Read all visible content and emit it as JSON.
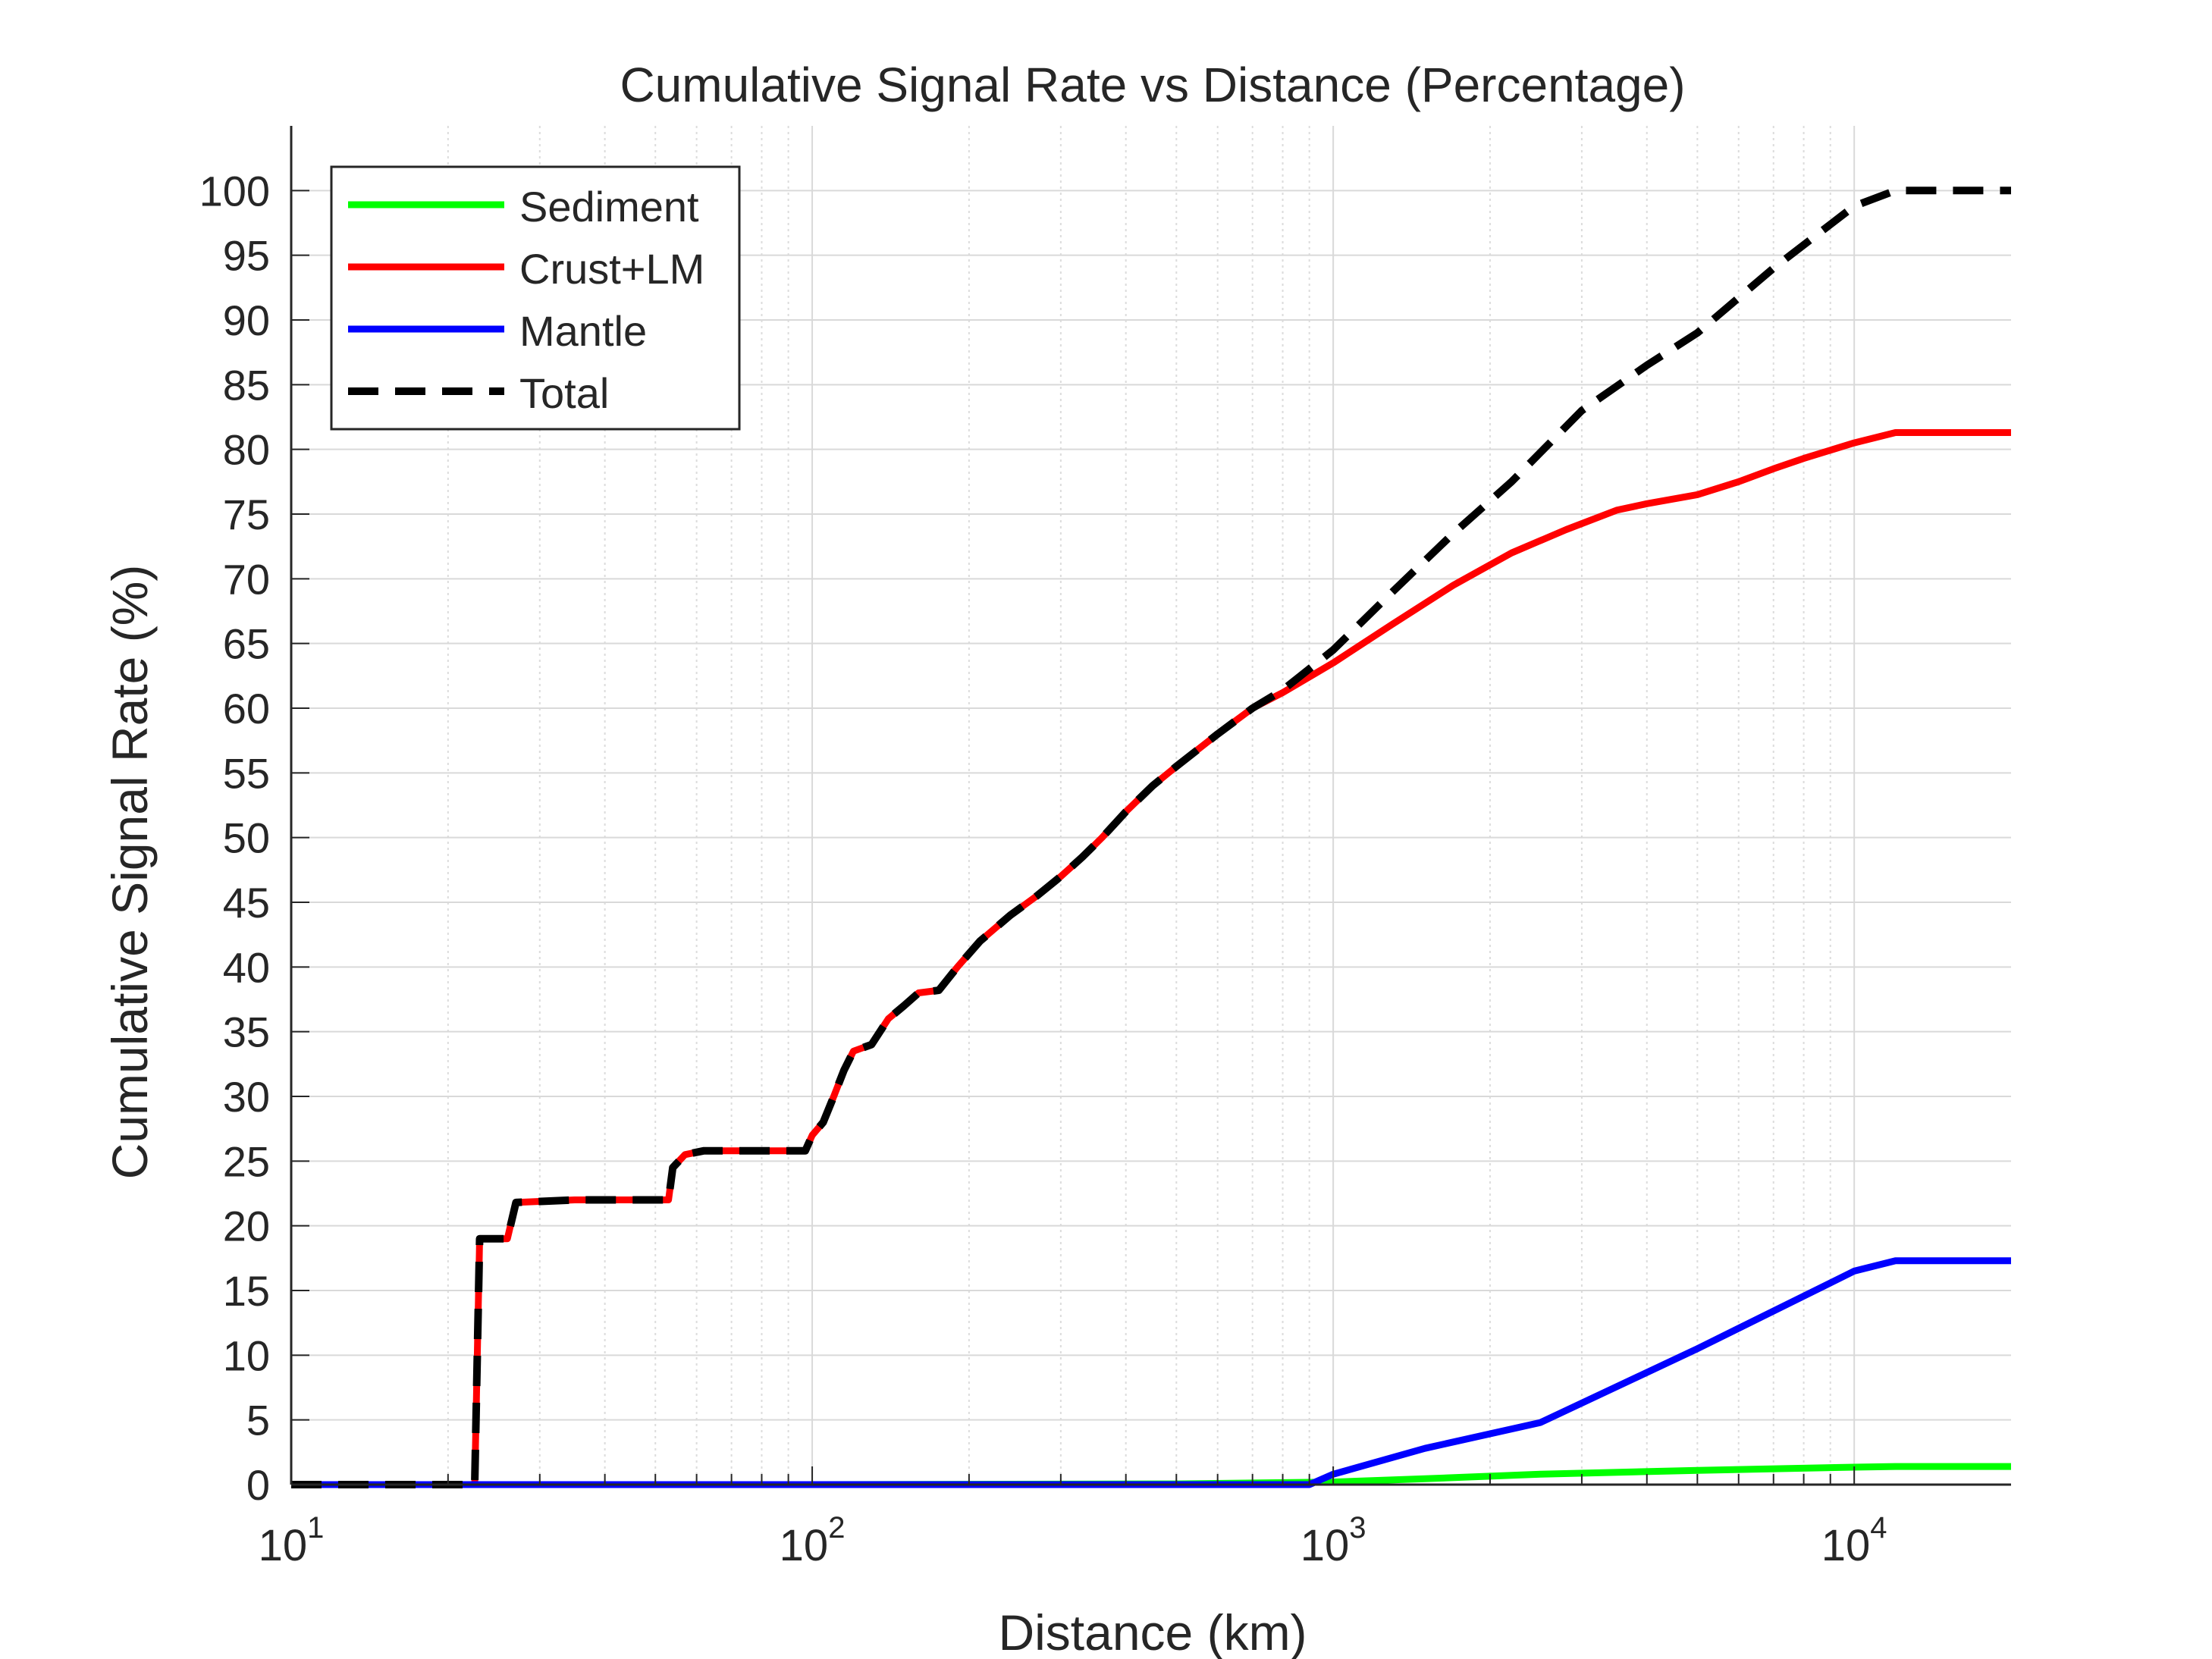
{
  "chart_data": {
    "type": "line",
    "title": "Cumulative Signal Rate vs Distance (Percentage)",
    "xlabel": "Distance (km)",
    "ylabel": "Cumulative Signal Rate (%)",
    "xscale": "log",
    "xlim": [
      10,
      20000
    ],
    "ylim": [
      0,
      105
    ],
    "x_ticks": [
      {
        "value": 10,
        "base": "10",
        "exp": "1"
      },
      {
        "value": 100,
        "base": "10",
        "exp": "2"
      },
      {
        "value": 1000,
        "base": "10",
        "exp": "3"
      },
      {
        "value": 10000,
        "base": "10",
        "exp": "4"
      }
    ],
    "y_ticks": [
      0,
      5,
      10,
      15,
      20,
      25,
      30,
      35,
      40,
      45,
      50,
      55,
      60,
      65,
      70,
      75,
      80,
      85,
      90,
      95,
      100
    ],
    "grid": true,
    "legend_position": "top-left",
    "series": [
      {
        "name": "Sediment",
        "color": "#00ff00",
        "style": "solid",
        "x": [
          10,
          100,
          500,
          1000,
          1500,
          2500,
          5000,
          10000,
          12000,
          20000
        ],
        "y": [
          0,
          0,
          0.05,
          0.2,
          0.45,
          0.8,
          1.1,
          1.35,
          1.4,
          1.4
        ]
      },
      {
        "name": "Crust+LM",
        "color": "#ff0000",
        "style": "solid",
        "x": [
          10,
          22.5,
          23,
          26,
          27,
          35,
          53,
          54,
          57,
          62,
          70,
          97,
          100,
          105,
          110,
          115,
          120,
          130,
          140,
          150,
          160,
          175,
          190,
          210,
          240,
          270,
          300,
          330,
          360,
          400,
          450,
          500,
          600,
          700,
          800,
          1000,
          1300,
          1700,
          2200,
          2800,
          3500,
          4000,
          5000,
          6000,
          7000,
          8000,
          10000,
          12000,
          20000
        ],
        "y": [
          0,
          0,
          19,
          19,
          21.8,
          22,
          22,
          24.5,
          25.5,
          25.8,
          25.8,
          25.8,
          27,
          28,
          30,
          32,
          33.5,
          34,
          36,
          37,
          38,
          38.2,
          40,
          42,
          44,
          45.5,
          47,
          48.5,
          50,
          52,
          54,
          55.5,
          58,
          60,
          61.2,
          63.5,
          66.5,
          69.5,
          72,
          73.8,
          75.3,
          75.8,
          76.5,
          77.5,
          78.5,
          79.3,
          80.5,
          81.3,
          81.3
        ]
      },
      {
        "name": "Mantle",
        "color": "#0000ff",
        "style": "solid",
        "x": [
          10,
          900,
          1000,
          1500,
          2500,
          5000,
          10000,
          12000,
          20000
        ],
        "y": [
          0,
          0,
          0.8,
          2.8,
          4.8,
          10.5,
          16.5,
          17.3,
          17.3
        ]
      },
      {
        "name": "Total",
        "color": "#000000",
        "style": "dashed",
        "x": [
          10,
          22.5,
          23,
          26,
          27,
          35,
          53,
          54,
          57,
          62,
          70,
          97,
          100,
          105,
          110,
          115,
          120,
          130,
          140,
          150,
          160,
          175,
          190,
          210,
          240,
          270,
          300,
          330,
          360,
          400,
          450,
          500,
          600,
          700,
          800,
          1000,
          1300,
          1700,
          2200,
          3000,
          4000,
          5000,
          7000,
          10000,
          12000,
          20000
        ],
        "y": [
          0,
          0,
          19,
          19,
          21.8,
          22,
          22,
          24.5,
          25.5,
          25.8,
          25.8,
          25.8,
          27,
          28,
          30,
          32,
          33.5,
          34,
          36,
          37,
          38,
          38.2,
          40,
          42,
          44,
          45.5,
          47,
          48.5,
          50,
          52,
          54,
          55.5,
          58,
          60,
          61.4,
          64.5,
          69,
          73.5,
          77.5,
          83,
          86.5,
          89,
          94,
          98.8,
          100,
          100
        ]
      }
    ]
  }
}
